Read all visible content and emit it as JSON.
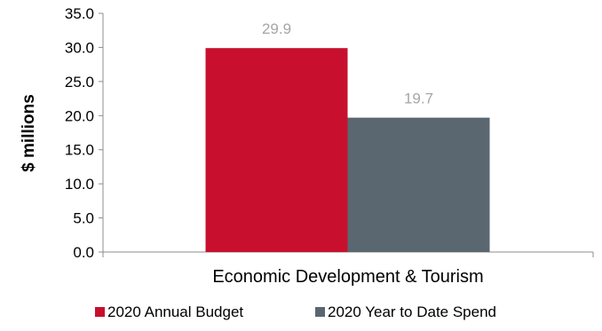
{
  "chart_data": {
    "type": "bar",
    "categories": [
      "Economic Development & Tourism"
    ],
    "series": [
      {
        "name": "2020 Annual Budget",
        "values": [
          29.9
        ],
        "color": "#C8102E",
        "data_label": "29.9"
      },
      {
        "name": "2020 Year to Date Spend",
        "values": [
          19.7
        ],
        "color": "#5A6770",
        "data_label": "19.7"
      }
    ],
    "ylabel": "$ millions",
    "ylim": [
      0,
      35
    ],
    "yticks": [
      "0.0",
      "5.0",
      "10.0",
      "15.0",
      "20.0",
      "25.0",
      "30.0",
      "35.0"
    ],
    "grid": false,
    "legend_position": "bottom",
    "data_label_color": "#A6A6A6"
  }
}
